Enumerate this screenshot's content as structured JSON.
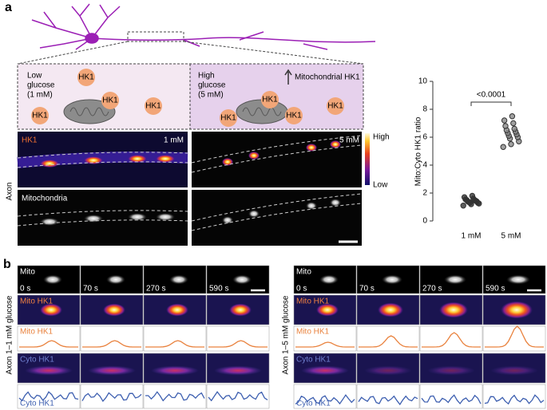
{
  "panel_a": {
    "label": "a",
    "schematic": {
      "low": [
        "Low",
        "glucose",
        "(1 mM)"
      ],
      "high": [
        "High",
        "glucose",
        "(5 mM)"
      ],
      "arrow_label": "Mitochondrial HK1",
      "protein": "HK1"
    },
    "images": {
      "row_labels": [
        "HK1",
        "Mitochondria"
      ],
      "conditions": [
        "1 mM",
        "5 mM"
      ],
      "colorbar": [
        "High",
        "Low"
      ],
      "side_label": "Axon"
    }
  },
  "chart_data": {
    "type": "strip",
    "y_label": "Mito:Cyto HK1 ratio",
    "categories": [
      "1 mM",
      "5 mM"
    ],
    "values": [
      [
        1.1,
        1.2,
        1.25,
        1.3,
        1.3,
        1.35,
        1.4,
        1.4,
        1.45,
        1.5,
        1.5,
        1.55,
        1.6,
        1.7,
        1.8
      ],
      [
        5.3,
        5.5,
        5.7,
        5.9,
        6.0,
        6.1,
        6.2,
        6.3,
        6.4,
        6.5,
        6.6,
        6.8,
        7.0,
        7.2,
        7.5
      ]
    ],
    "ylim": [
      0,
      10
    ],
    "yticks": [
      0,
      2,
      4,
      6,
      8,
      10
    ],
    "annotation": "<0.0001",
    "color": "#333333"
  },
  "panel_b": {
    "label": "b",
    "times": [
      "0 s",
      "70 s",
      "270 s",
      "590 s"
    ],
    "row_labels": [
      "Mito",
      "Mito HK1",
      "Mito HK1",
      "Cyto HK1",
      "Cyto HK1"
    ],
    "groups": [
      "Axon 1–1 mM glucose",
      "Axon 1–5 mM glucose"
    ]
  }
}
